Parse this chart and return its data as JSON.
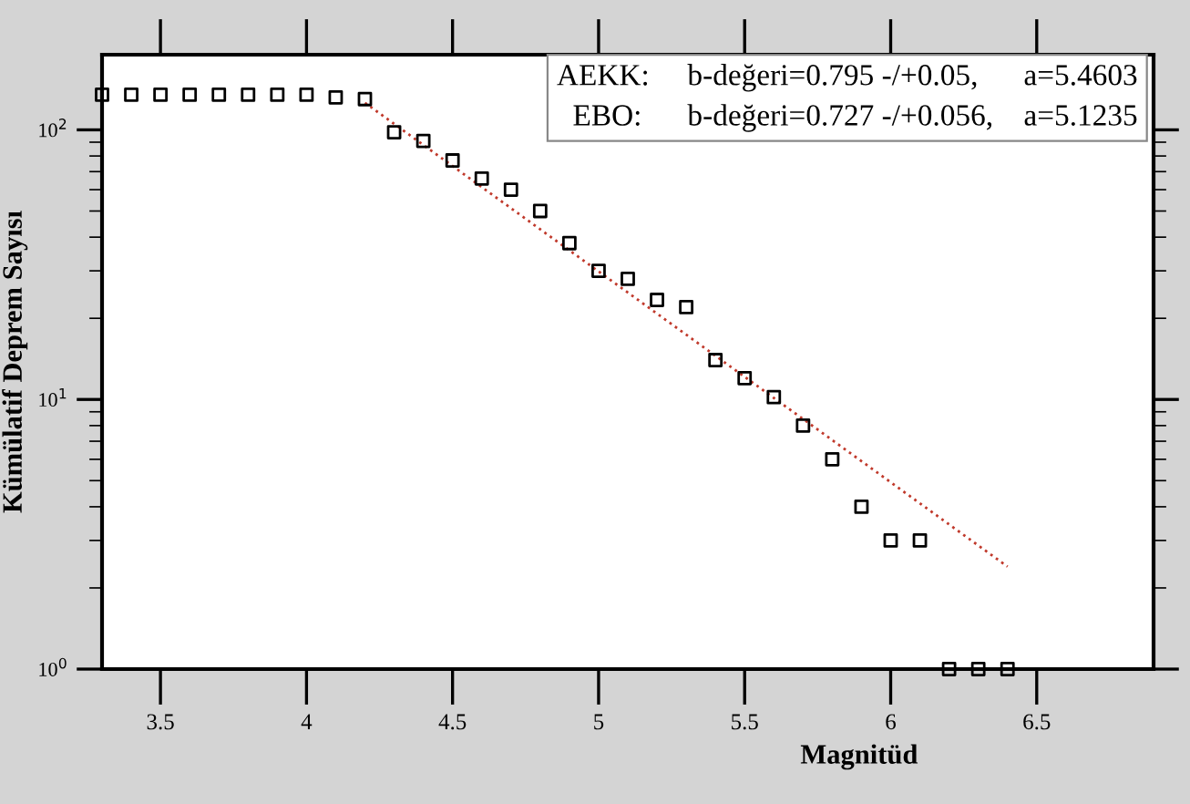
{
  "chart_data": {
    "type": "scatter",
    "xlabel": "Magnitüd",
    "ylabel": "Kümülatif Deprem Sayısı",
    "log": "y",
    "xlim": [
      3.3,
      6.9
    ],
    "xticks": [
      3.5,
      4,
      4.5,
      5,
      5.5,
      6,
      6.5
    ],
    "ylim": [
      1,
      190
    ],
    "yticks": [
      {
        "value": 1,
        "label": "10$^{0}$"
      },
      {
        "value": 10,
        "label": "10$^{1}$"
      },
      {
        "value": 100,
        "label": "10$^{2}$"
      }
    ],
    "grid": false,
    "legend": false,
    "series": [
      {
        "marker": "square",
        "color": "#000000",
        "x": [
          3.3,
          3.4,
          3.5,
          3.6,
          3.7,
          3.8,
          3.9,
          4.0,
          4.1,
          4.2,
          4.3,
          4.4,
          4.5,
          4.6,
          4.7,
          4.8,
          4.9,
          5.0,
          5.1,
          5.2,
          5.3,
          5.4,
          5.5,
          5.6,
          5.7,
          5.8,
          5.9,
          6.0,
          6.1,
          6.2,
          6.3,
          6.4
        ],
        "values": [
          135,
          135,
          135,
          135,
          135,
          135,
          135,
          135,
          132,
          130,
          98,
          91,
          77,
          66,
          60,
          50,
          38,
          30,
          28,
          23.4,
          22,
          14,
          12,
          10.2,
          8,
          6,
          4,
          3,
          3,
          1,
          1,
          1
        ]
      },
      {
        "type": "line",
        "color": "#c0392b",
        "line_style": "dotted",
        "x": [
          4.2,
          6.4
        ],
        "values": [
          126,
          2.4
        ]
      }
    ],
    "annotations": [
      "AEKK:     b-değeri=0.795 -/+0.05,      a=5.4603",
      "EBO:      b-değeri=0.727 -/+0.056,    a=5.1235"
    ]
  }
}
